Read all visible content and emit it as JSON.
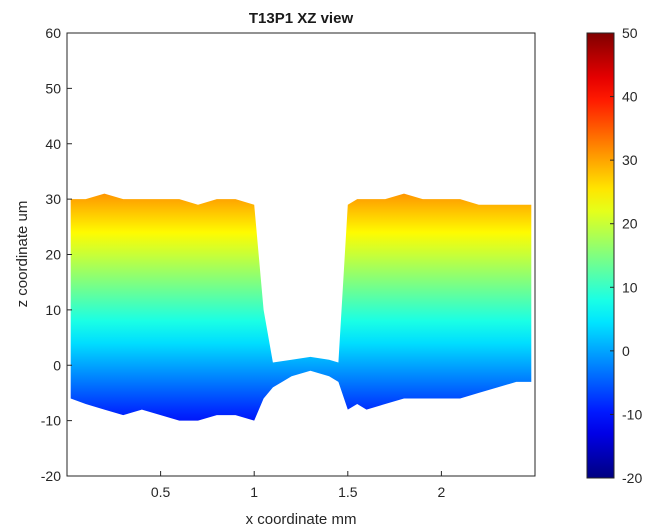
{
  "chart_data": {
    "type": "area",
    "title": "T13P1 XZ view",
    "xlabel": "x coordinate mm",
    "ylabel": "z coordinate um",
    "xlim": [
      0,
      2.5
    ],
    "ylim": [
      -20,
      60
    ],
    "x_ticks": [
      0.5,
      1,
      1.5,
      2
    ],
    "x_tick_labels": [
      "0.5",
      "1",
      "1.5",
      "2"
    ],
    "y_ticks": [
      -20,
      -10,
      0,
      10,
      20,
      30,
      40,
      50,
      60
    ],
    "y_tick_labels": [
      "-20",
      "-10",
      "0",
      "10",
      "20",
      "30",
      "40",
      "50",
      "60"
    ],
    "grid": false,
    "colormap": "jet",
    "colorbar": {
      "range": [
        -20,
        50
      ],
      "ticks": [
        -20,
        -10,
        0,
        10,
        20,
        30,
        40,
        50
      ],
      "tick_labels": [
        "-20",
        "-10",
        "0",
        "10",
        "20",
        "30",
        "40",
        "50"
      ]
    },
    "series": [
      {
        "x": [
          0.02,
          0.1,
          0.2,
          0.3,
          0.4,
          0.5,
          0.6,
          0.7,
          0.8,
          0.9,
          1.0,
          1.05,
          1.1,
          1.2,
          1.3,
          1.4,
          1.45,
          1.5,
          1.55,
          1.6,
          1.7,
          1.8,
          1.9,
          2.0,
          2.1,
          2.2,
          2.3,
          2.4,
          2.48
        ],
        "top": [
          30,
          30,
          31,
          30,
          30,
          30,
          30,
          29,
          30,
          30,
          29,
          10,
          0.5,
          1,
          1.5,
          1,
          0.5,
          29,
          30,
          30,
          30,
          31,
          30,
          30,
          30,
          29,
          29,
          29,
          29
        ],
        "bottom": [
          -6,
          -7,
          -8,
          -9,
          -8,
          -9,
          -10,
          -10,
          -9,
          -9,
          -10,
          -6,
          -4,
          -2,
          -1,
          -2,
          -3,
          -8,
          -7,
          -8,
          -7,
          -6,
          -6,
          -6,
          -6,
          -5,
          -4,
          -3,
          -3
        ]
      }
    ]
  }
}
